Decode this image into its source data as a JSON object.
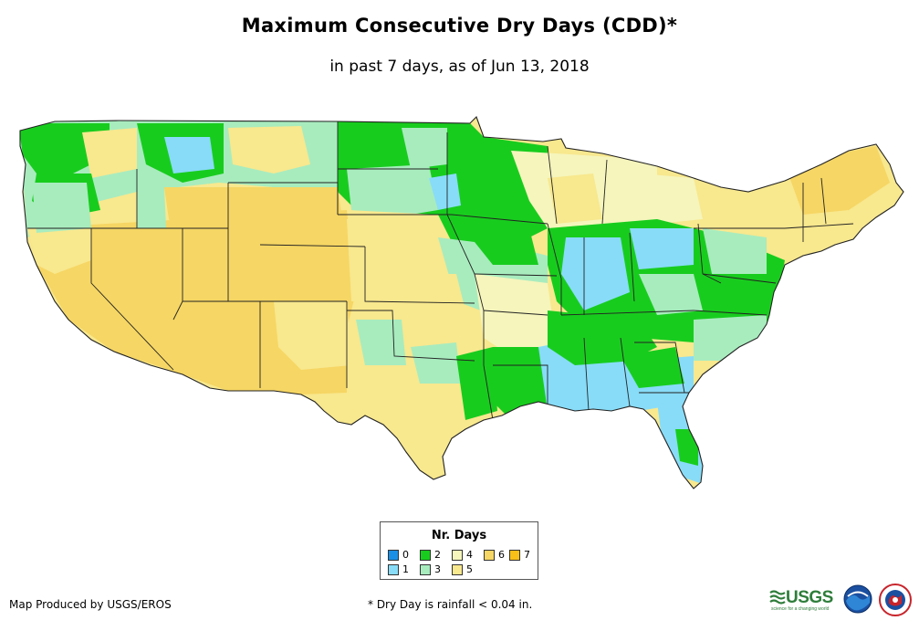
{
  "title": "Maximum Consecutive Dry Days (CDD)*",
  "subtitle": "in past 7 days, as of Jun 13, 2018",
  "legend": {
    "title": "Nr. Days",
    "items": [
      {
        "label": "0",
        "color": "#1a8fe6"
      },
      {
        "label": "2",
        "color": "#18cc1e"
      },
      {
        "label": "4",
        "color": "#f5f5bc"
      },
      {
        "label": "6",
        "color": "#f6d664"
      },
      {
        "label": "7",
        "color": "#f7bf18"
      },
      {
        "label": "1",
        "color": "#88dcf8"
      },
      {
        "label": "3",
        "color": "#a8ecbe"
      },
      {
        "label": "5",
        "color": "#f8e88e"
      }
    ]
  },
  "map": {
    "region": "Contiguous United States",
    "regional_values": {
      "southwest": "6",
      "rockies": "6",
      "plains": "5",
      "northeast": "5",
      "ohio_valley": "2",
      "gulf_coast": "1",
      "upper_midwest": "2",
      "pacific_northwest": "2"
    }
  },
  "footer": {
    "credit": "Map Produced by USGS/EROS",
    "footnote": "* Dry Day is rainfall < 0.04 in.",
    "logos": {
      "usgs": "USGS",
      "usgs_tagline": "science for a changing world",
      "noaa": "noaa-logo",
      "nws": "nws-logo"
    }
  }
}
